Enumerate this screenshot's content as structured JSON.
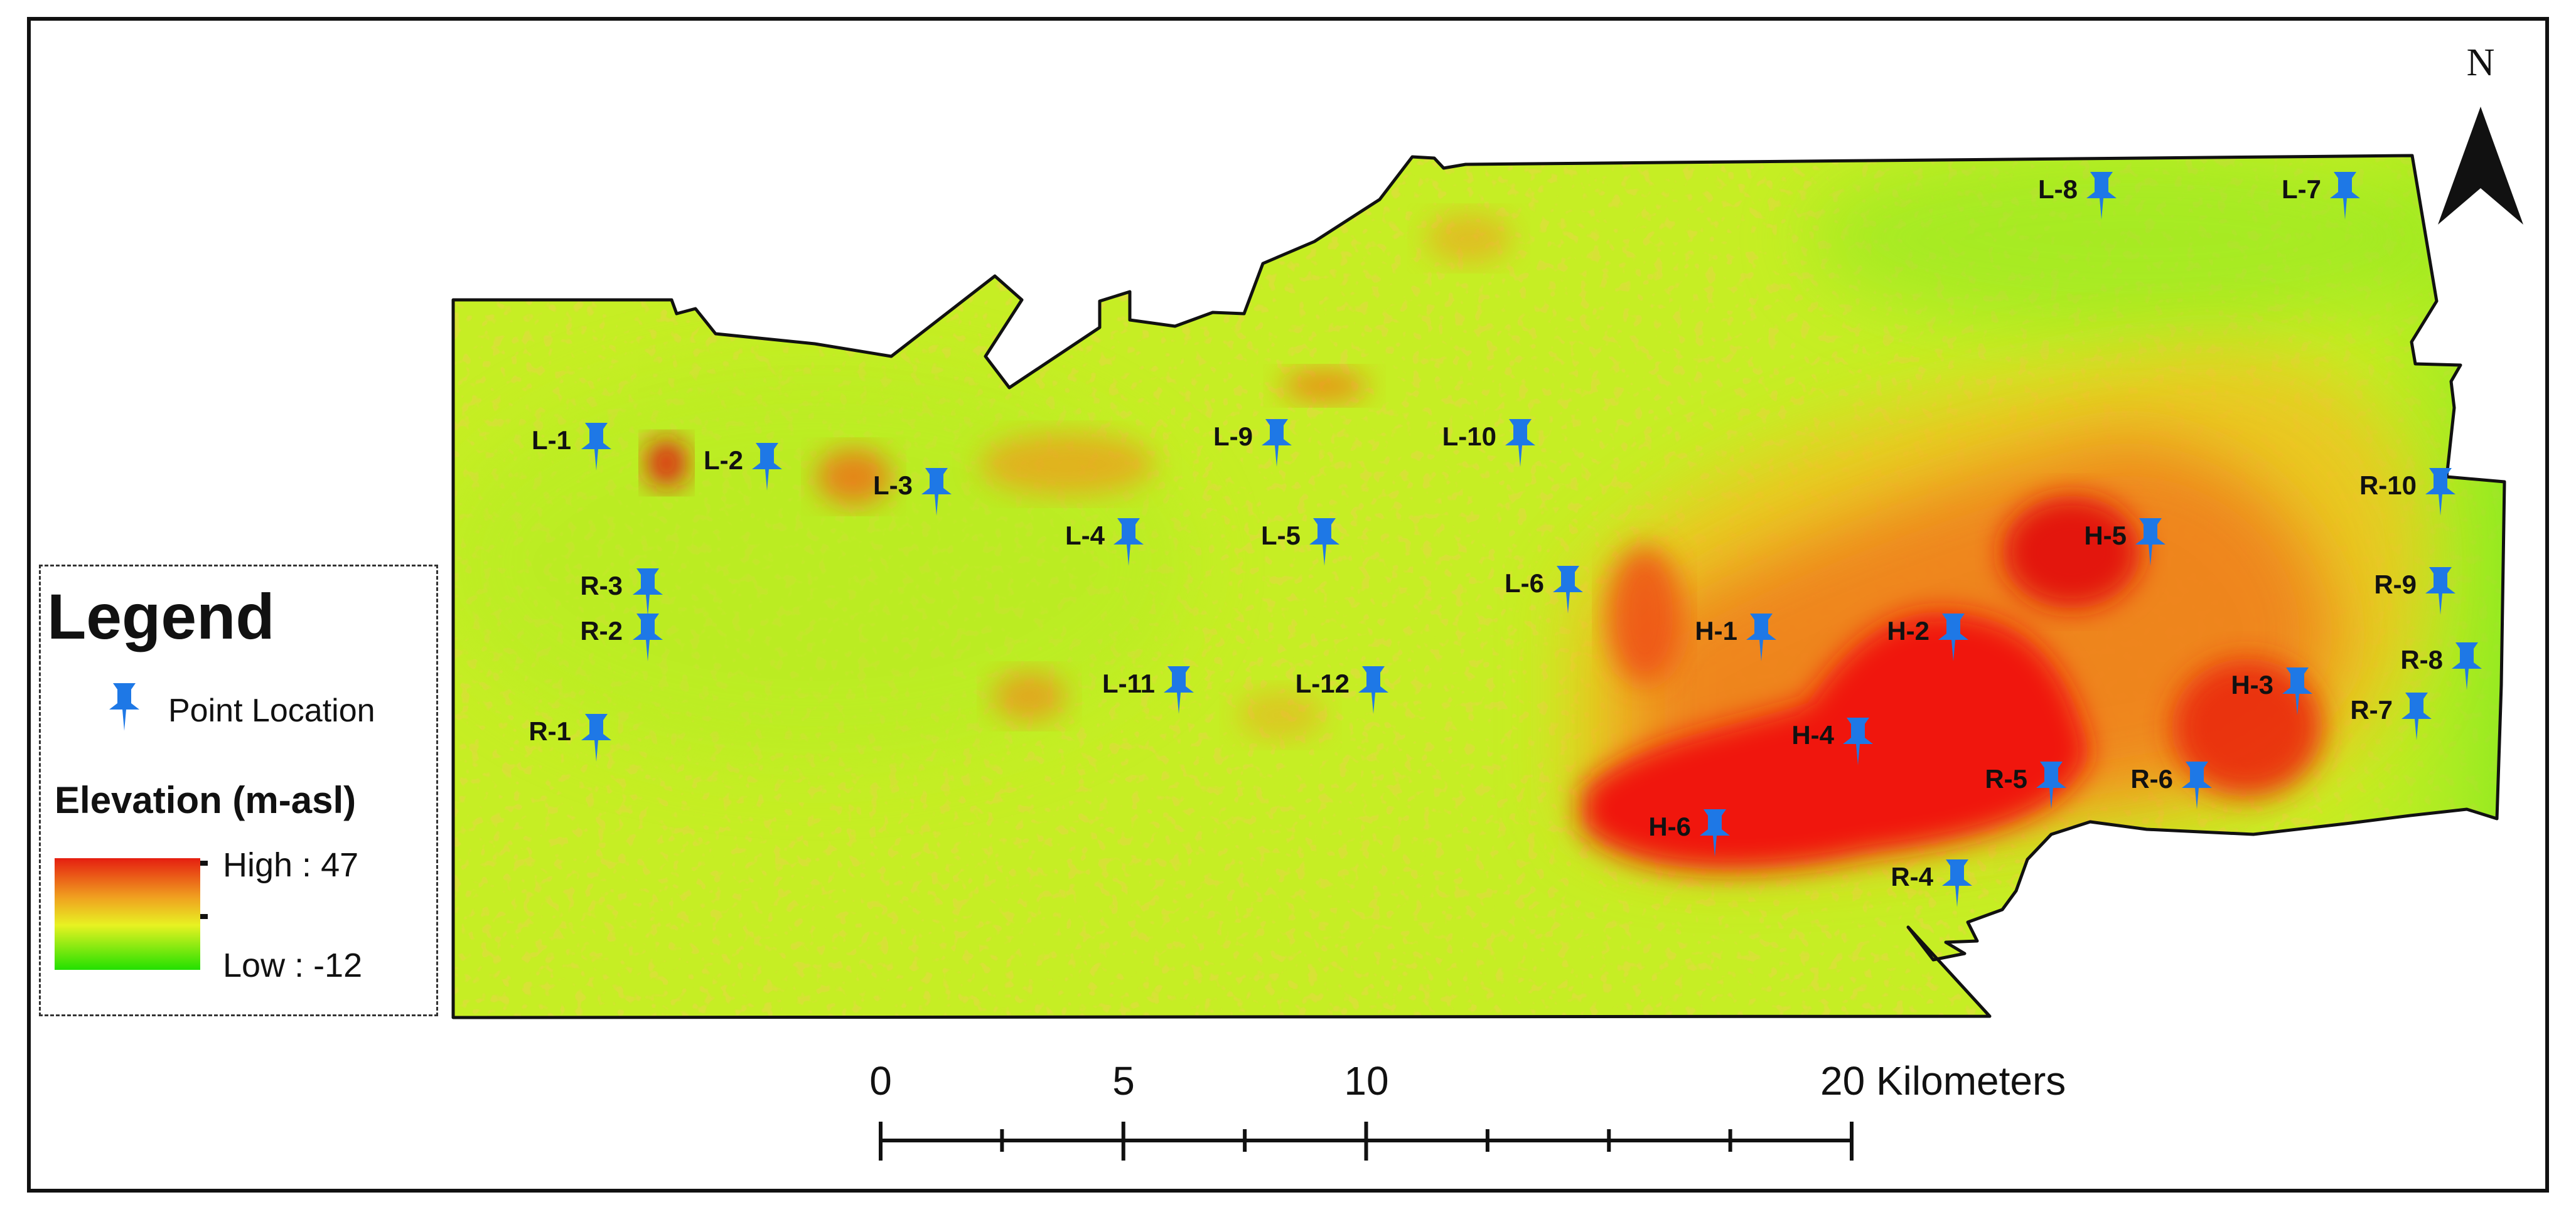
{
  "north_arrow": {
    "letter": "N"
  },
  "legend": {
    "title": "Legend",
    "point_location_label": "Point Location",
    "elevation_title": "Elevation (m-asl)",
    "high_label": "High : 47",
    "low_label": "Low : -12",
    "ramp_colors": {
      "high": "#e51e10",
      "mid": "#e8f222",
      "low": "#22e000"
    }
  },
  "scale_bar": {
    "labels": [
      "0",
      "5",
      "10",
      "20 Kilometers"
    ]
  },
  "colors": {
    "pin": "#1e78e6",
    "base_terrain": "#c4ee22",
    "high_terrain": "#f01808"
  },
  "icons": {
    "point": "pushpin-icon",
    "north": "north-arrow-icon"
  },
  "points": [
    {
      "id": "L-1"
    },
    {
      "id": "L-2"
    },
    {
      "id": "L-3"
    },
    {
      "id": "L-4"
    },
    {
      "id": "L-5"
    },
    {
      "id": "L-6"
    },
    {
      "id": "L-7"
    },
    {
      "id": "L-8"
    },
    {
      "id": "L-9"
    },
    {
      "id": "L-10"
    },
    {
      "id": "L-11"
    },
    {
      "id": "L-12"
    },
    {
      "id": "R-1"
    },
    {
      "id": "R-2"
    },
    {
      "id": "R-3"
    },
    {
      "id": "R-4"
    },
    {
      "id": "R-5"
    },
    {
      "id": "R-6"
    },
    {
      "id": "R-7"
    },
    {
      "id": "R-8"
    },
    {
      "id": "R-9"
    },
    {
      "id": "R-10"
    },
    {
      "id": "H-1"
    },
    {
      "id": "H-2"
    },
    {
      "id": "H-3"
    },
    {
      "id": "H-4"
    },
    {
      "id": "H-5"
    },
    {
      "id": "H-6"
    }
  ]
}
